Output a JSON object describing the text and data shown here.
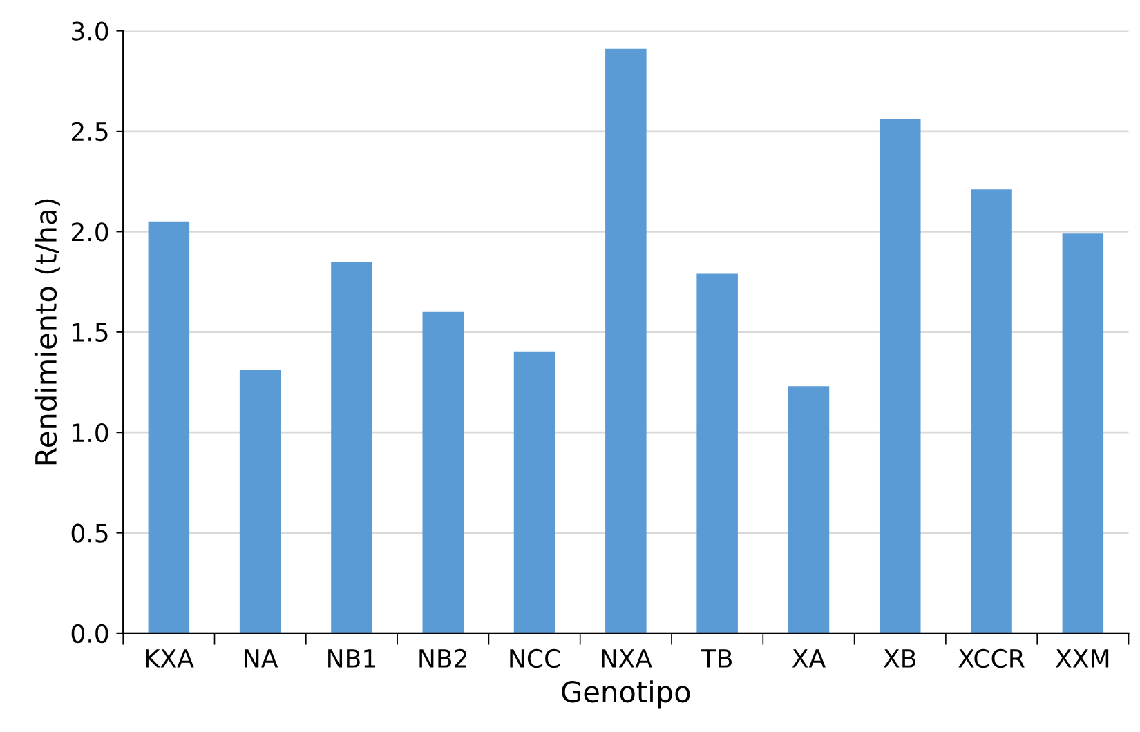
{
  "chart_data": {
    "type": "bar",
    "xlabel": "Genotipo",
    "ylabel": "Rendimiento (t/ha)",
    "categories": [
      "KXA",
      "NA",
      "NB1",
      "NB2",
      "NCC",
      "NXA",
      "TB",
      "XA",
      "XB",
      "XCCR",
      "XXM"
    ],
    "values": [
      2.05,
      1.31,
      1.85,
      1.6,
      1.4,
      2.91,
      1.79,
      1.23,
      2.56,
      2.21,
      1.99
    ],
    "color": "#5b9bd5",
    "ylim": [
      0,
      3.0
    ],
    "yticks": [
      {
        "value": 0,
        "label": "0.0"
      },
      {
        "value": 0.5,
        "label": "0.5"
      },
      {
        "value": 1.0,
        "label": "1.0"
      },
      {
        "value": 1.5,
        "label": "1.5"
      },
      {
        "value": 2.0,
        "label": "2.0"
      },
      {
        "value": 2.5,
        "label": "2.5"
      },
      {
        "value": 3.0,
        "label": "3.0"
      }
    ],
    "grid": "y"
  }
}
